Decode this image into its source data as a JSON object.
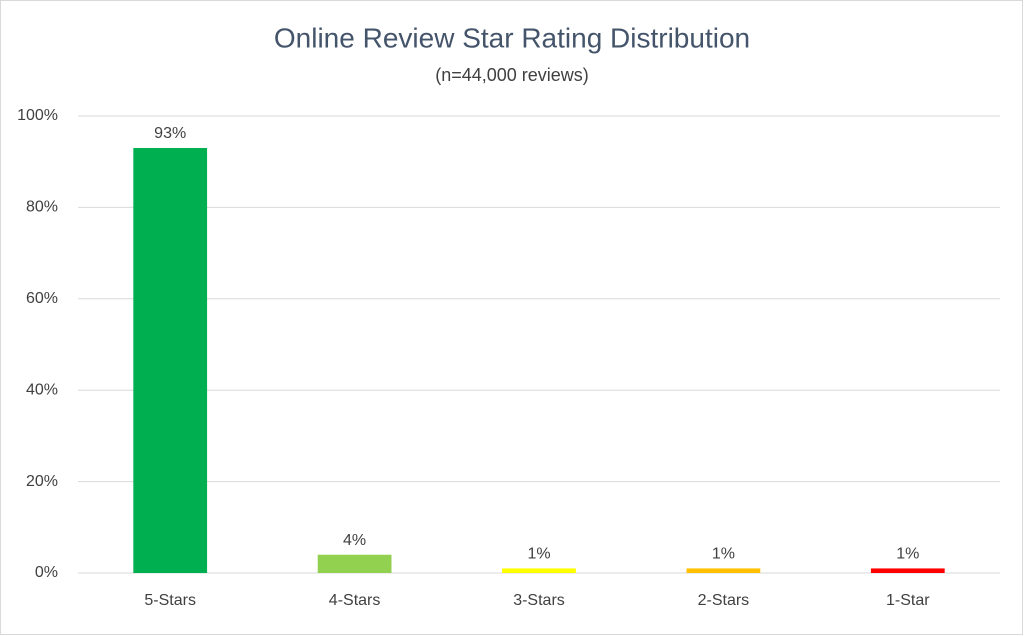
{
  "chart_data": {
    "type": "bar",
    "title": "Online Review Star Rating Distribution",
    "subtitle": "(n=44,000 reviews)",
    "categories": [
      "5-Stars",
      "4-Stars",
      "3-Stars",
      "2-Stars",
      "1-Star"
    ],
    "values": [
      93,
      4,
      1,
      1,
      1
    ],
    "value_labels": [
      "93%",
      "4%",
      "1%",
      "1%",
      "1%"
    ],
    "colors": [
      "#00b050",
      "#92d050",
      "#ffff00",
      "#ffc000",
      "#ff0000"
    ],
    "ylim": [
      0,
      100
    ],
    "yticks": [
      {
        "value": 0,
        "label": "0%"
      },
      {
        "value": 20,
        "label": "20%"
      },
      {
        "value": 40,
        "label": "40%"
      },
      {
        "value": 60,
        "label": "60%"
      },
      {
        "value": 80,
        "label": "80%"
      },
      {
        "value": 100,
        "label": "100%"
      }
    ],
    "grid": true
  }
}
